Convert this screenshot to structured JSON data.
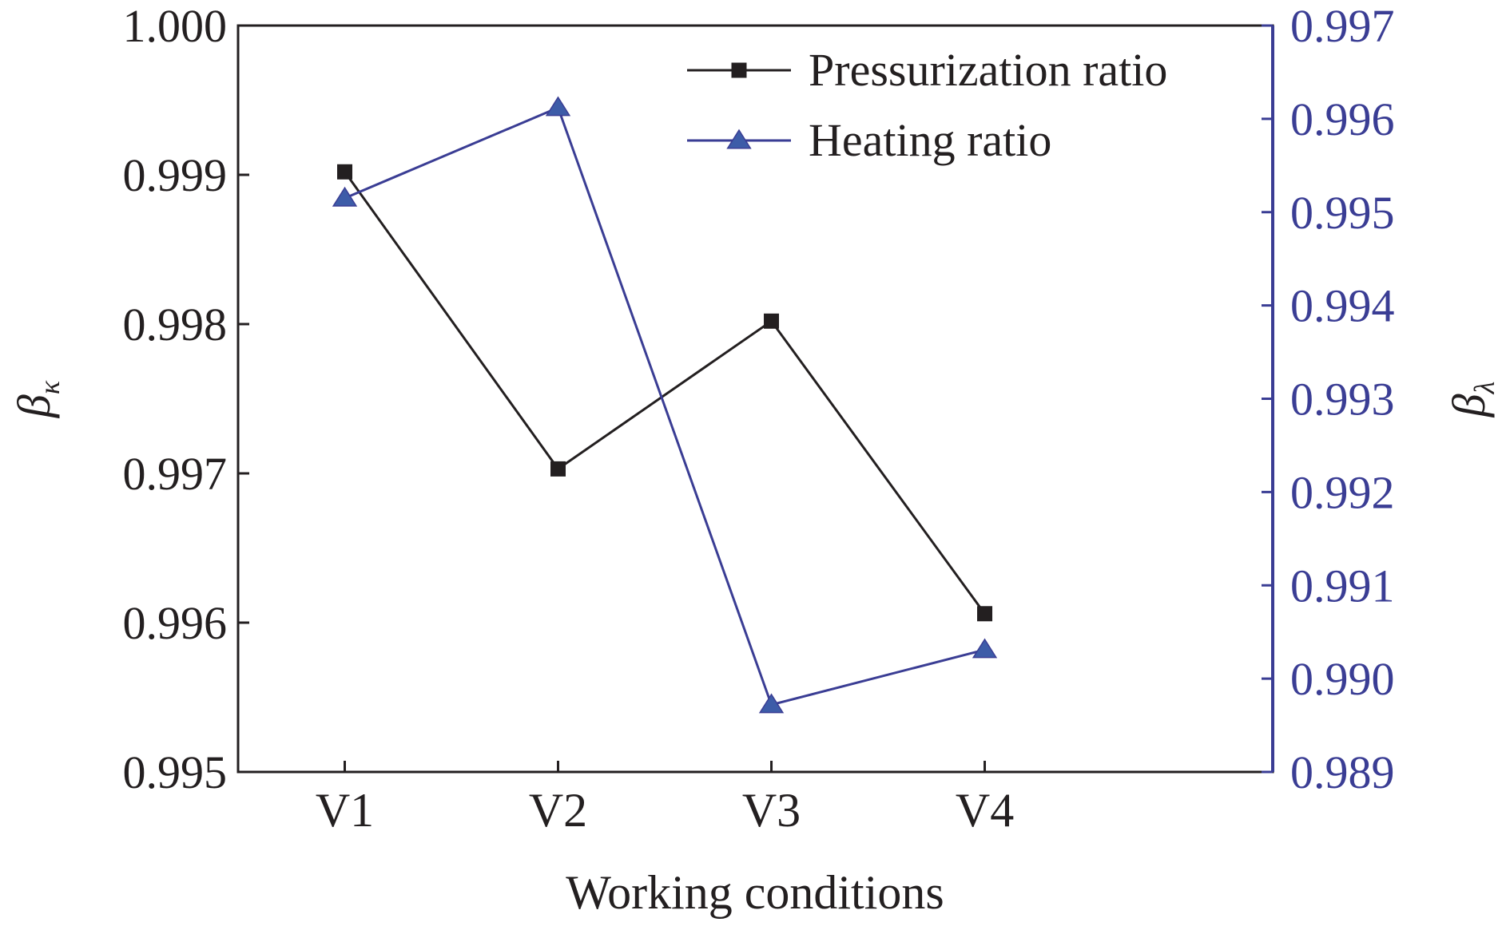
{
  "chart_data": {
    "type": "line",
    "categories": [
      "V1",
      "V2",
      "V3",
      "V4"
    ],
    "xlabel": "Working conditions",
    "ylabel_left": {
      "symbol": "β",
      "subscript": "κ"
    },
    "ylabel_right": {
      "symbol": "β",
      "subscript": "λ"
    },
    "ylim_left": [
      0.995,
      1.0
    ],
    "ylim_right": [
      0.989,
      0.997
    ],
    "yticks_left": [
      "0.995",
      "0.996",
      "0.997",
      "0.998",
      "0.999",
      "1.000"
    ],
    "yticks_right": [
      "0.989",
      "0.990",
      "0.991",
      "0.992",
      "0.993",
      "0.994",
      "0.995",
      "0.996",
      "0.997"
    ],
    "grid": false,
    "legend_position": "top-right",
    "series": [
      {
        "name": "Pressurization ratio",
        "axis": "left",
        "marker": "square",
        "color": "#231f20",
        "values": [
          0.99902,
          0.99703,
          0.99802,
          0.99606
        ]
      },
      {
        "name": "Heating ratio",
        "axis": "right",
        "marker": "triangle",
        "color": "#3a3d94",
        "values": [
          0.99515,
          0.99612,
          0.98972,
          0.99031
        ]
      }
    ],
    "colors": {
      "axis_left": "#231f20",
      "axis_right": "#3a3d94",
      "marker_heating_fill": "#3d5ca8",
      "tick_text_right": "#3a3d94"
    }
  }
}
